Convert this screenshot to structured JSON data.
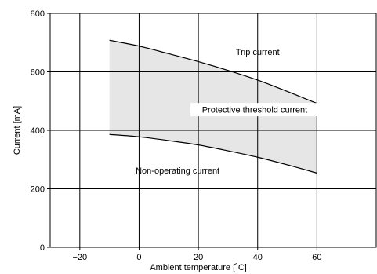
{
  "chart_data": {
    "type": "area",
    "xlabel": "Ambient temperature [˚C]",
    "ylabel": "Current [mA]",
    "xlim": [
      -30,
      80
    ],
    "ylim": [
      0,
      800
    ],
    "x_ticks": [
      -20,
      0,
      20,
      40,
      60
    ],
    "y_ticks": [
      0,
      200,
      400,
      600,
      800
    ],
    "x_tick_labels": [
      "−20",
      "0",
      "20",
      "40",
      "60"
    ],
    "y_tick_labels": [
      "0",
      "200",
      "400",
      "600",
      "800"
    ],
    "grid": true,
    "fill_color": "#e6e6e6",
    "series": [
      {
        "name": "Trip current",
        "x": [
          -10,
          0,
          10,
          20,
          30,
          40,
          50,
          60
        ],
        "y": [
          708,
          688,
          662,
          635,
          605,
          572,
          533,
          492
        ]
      },
      {
        "name": "Non-operating current",
        "x": [
          -10,
          0,
          10,
          20,
          30,
          40,
          50,
          60
        ],
        "y": [
          386,
          378,
          365,
          350,
          330,
          308,
          282,
          254
        ]
      }
    ],
    "annotations": [
      {
        "text": "Trip current",
        "x": 40,
        "y": 658
      },
      {
        "text": "Protective threshold current",
        "x": 39,
        "y": 460
      },
      {
        "text": "Non-operating current",
        "x": 13,
        "y": 252
      }
    ]
  }
}
